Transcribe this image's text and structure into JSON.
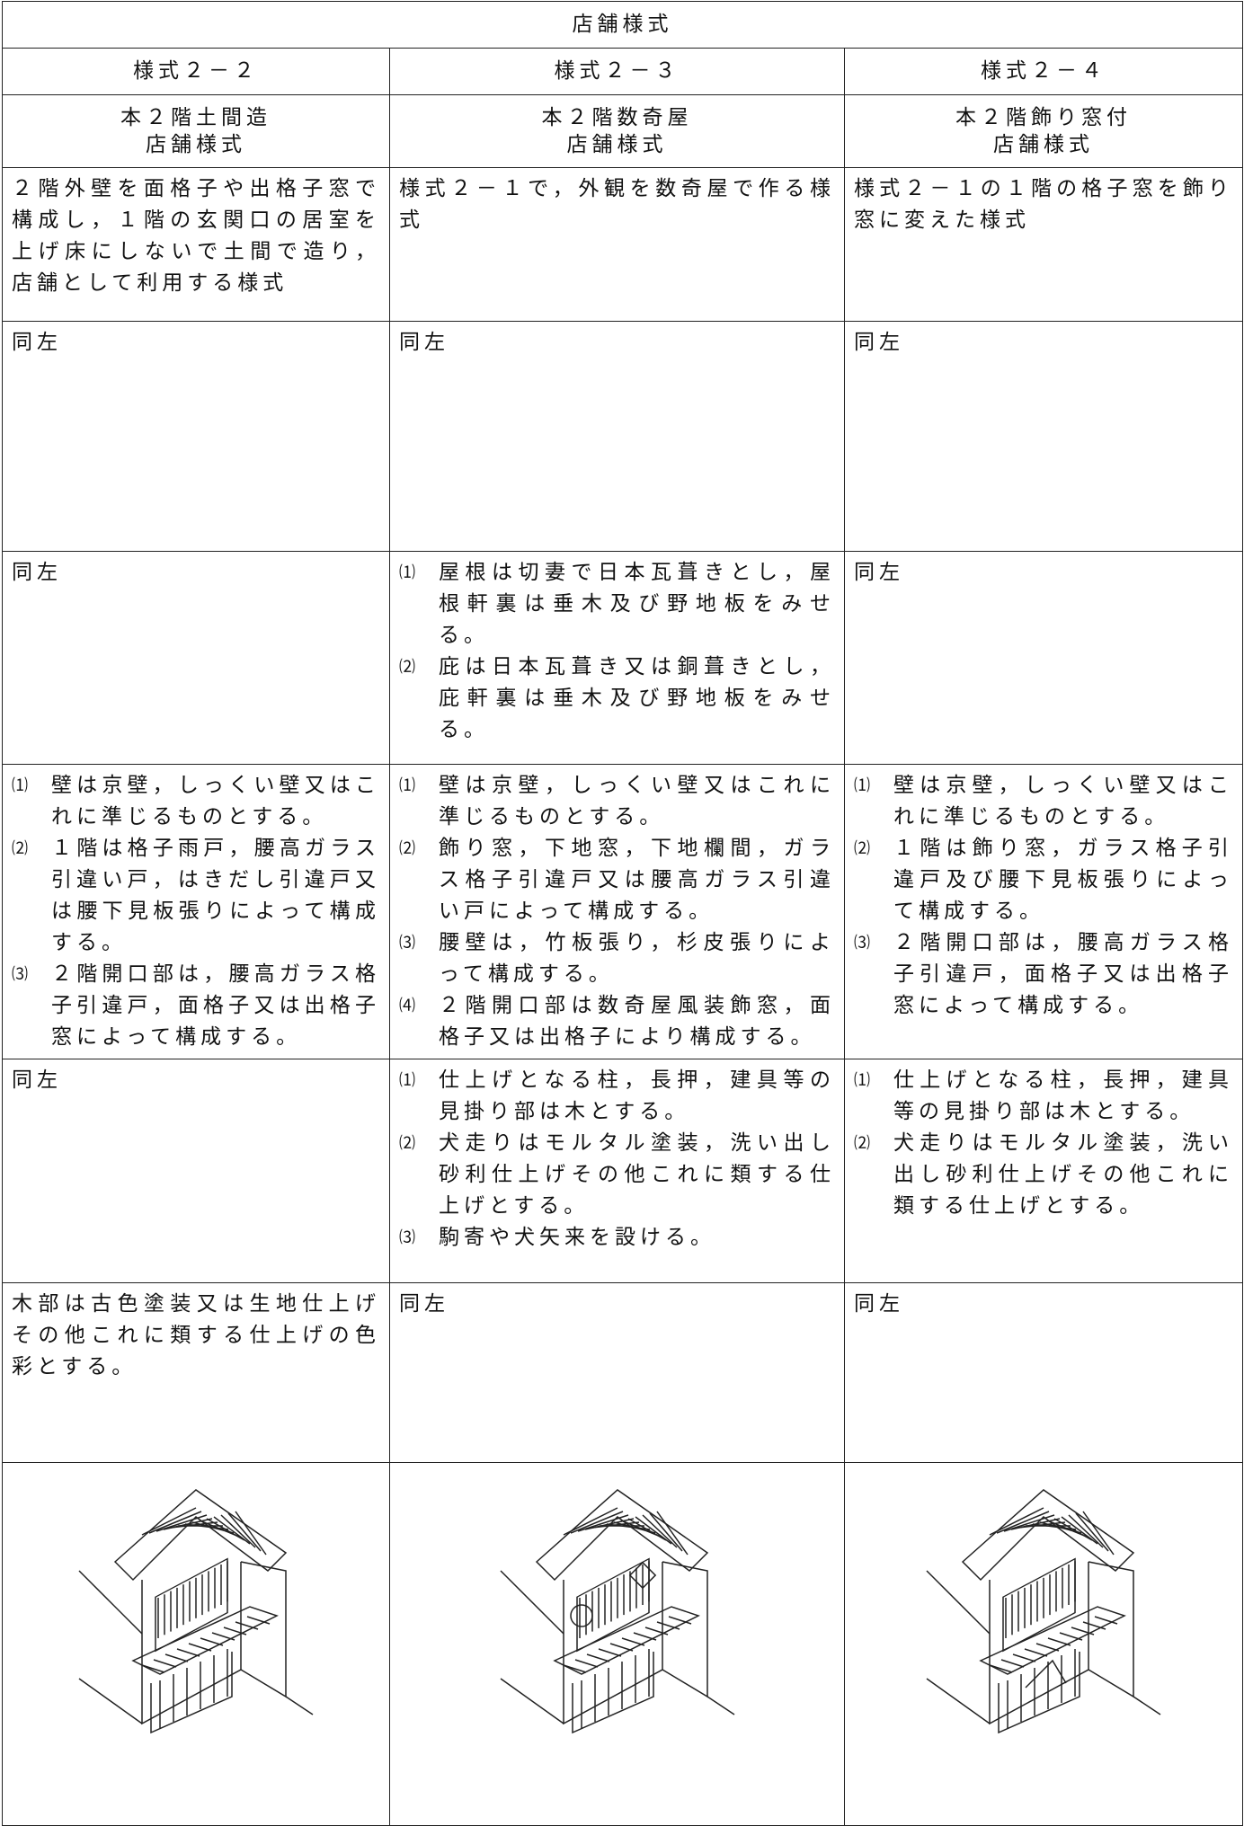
{
  "table": {
    "title": "店舗様式",
    "headers": [
      "様式２－２",
      "様式２－３",
      "様式２－４"
    ],
    "subtitles": [
      [
        "本２階土間造",
        "店舗様式"
      ],
      [
        "本２階数奇屋",
        "店舗様式"
      ],
      [
        "本２階飾り窓付",
        "店舗様式"
      ]
    ],
    "rows": [
      [
        "２階外壁を面格子や出格子窓で構成し，１階の玄関口の居室を上げ床にしないで土間で造り，店舗として利用する様式",
        "様式２－１で，外観を数奇屋で作る様式",
        "様式２－１の１階の格子窓を飾り窓に変えた様式"
      ],
      [
        "同左",
        "同左",
        "同左"
      ],
      [
        "同左",
        [
          {
            "marker": "⑴",
            "text": "屋根は切妻で日本瓦葺きとし，屋根軒裏は垂木及び野地板をみせる。"
          },
          {
            "marker": "⑵",
            "text": "庇は日本瓦葺き又は銅葺きとし，庇軒裏は垂木及び野地板をみせる。"
          }
        ],
        "同左"
      ],
      [
        [
          {
            "marker": "⑴",
            "text": "壁は京壁，しっくい壁又はこれに準じるものとする。"
          },
          {
            "marker": "⑵",
            "text": "１階は格子雨戸，腰高ガラス引違い戸，はきだし引違戸又は腰下見板張りによって構成する。"
          },
          {
            "marker": "⑶",
            "text": "２階開口部は，腰高ガラス格子引違戸，面格子又は出格子窓によって構成する。"
          }
        ],
        [
          {
            "marker": "⑴",
            "text": "壁は京壁，しっくい壁又はこれに準じるものとする。"
          },
          {
            "marker": "⑵",
            "text": "飾り窓，下地窓，下地欄間，ガラス格子引違戸又は腰高ガラス引違い戸によって構成する。"
          },
          {
            "marker": "⑶",
            "text": "腰壁は，竹板張り，杉皮張りによって構成する。"
          },
          {
            "marker": "⑷",
            "text": "２階開口部は数奇屋風装飾窓，面格子又は出格子により構成する。"
          }
        ],
        [
          {
            "marker": "⑴",
            "text": "壁は京壁，しっくい壁又はこれに準じるものとする。"
          },
          {
            "marker": "⑵",
            "text": "１階は飾り窓，ガラス格子引違戸及び腰下見板張りによって構成する。"
          },
          {
            "marker": "⑶",
            "text": "２階開口部は，腰高ガラス格子引違戸，面格子又は出格子窓によって構成する。"
          }
        ]
      ],
      [
        "同左",
        [
          {
            "marker": "⑴",
            "text": "仕上げとなる柱，長押，建具等の見掛り部は木とする。"
          },
          {
            "marker": "⑵",
            "text": "犬走りはモルタル塗装，洗い出し砂利仕上げその他これに類する仕上げとする。"
          },
          {
            "marker": "⑶",
            "text": "駒寄や犬矢来を設ける。"
          }
        ],
        [
          {
            "marker": "⑴",
            "text": "仕上げとなる柱，長押，建具等の見掛り部は木とする。"
          },
          {
            "marker": "⑵",
            "text": "犬走りはモルタル塗装，洗い出し砂利仕上げその他これに類する仕上げとする。"
          }
        ]
      ],
      [
        "木部は古色塗装又は生地仕上げその他これに類する仕上げの色彩とする。",
        "同左",
        "同左"
      ]
    ]
  }
}
